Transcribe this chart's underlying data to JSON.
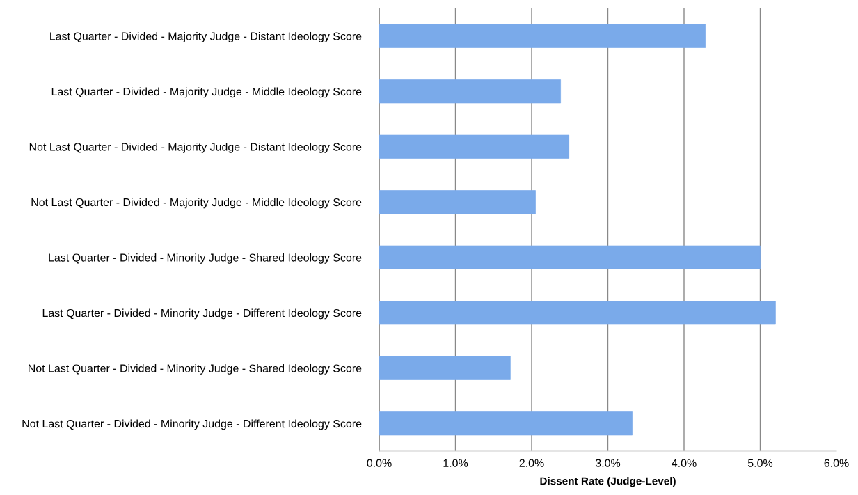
{
  "chart_data": {
    "type": "bar",
    "orientation": "horizontal",
    "xlabel": "Dissent Rate (Judge-Level)",
    "categories": [
      "Last Quarter - Divided - Majority Judge - Distant Ideology Score",
      "Last Quarter - Divided - Majority Judge - Middle Ideology Score",
      "Not Last Quarter - Divided - Majority Judge - Distant Ideology Score",
      "Not Last Quarter - Divided - Majority Judge - Middle Ideology Score",
      "Last Quarter - Divided - Minority Judge - Shared Ideology Score",
      "Last Quarter - Divided - Minority Judge - Different Ideology Score",
      "Not Last Quarter - Divided - Minority Judge - Shared Ideology Score",
      "Not Last Quarter - Divided - Minority Judge - Different Ideology Score"
    ],
    "values": [
      4.28,
      2.38,
      2.49,
      2.05,
      5.0,
      5.2,
      1.72,
      3.32
    ],
    "color": "#7aaaea",
    "xlim": [
      0,
      6
    ],
    "xticks": [
      {
        "value": 0,
        "label": "0.0%"
      },
      {
        "value": 1,
        "label": "1.0%"
      },
      {
        "value": 2,
        "label": "2.0%"
      },
      {
        "value": 3,
        "label": "3.0%"
      },
      {
        "value": 4,
        "label": "4.0%"
      },
      {
        "value": 5,
        "label": "5.0%"
      },
      {
        "value": 6,
        "label": "6.0%"
      }
    ],
    "grid": "x",
    "legend": false
  }
}
